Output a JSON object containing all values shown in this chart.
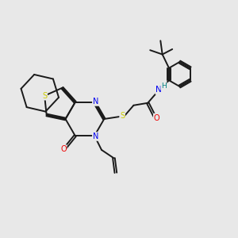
{
  "bg_color": "#e8e8e8",
  "bond_color": "#1a1a1a",
  "S_color": "#cccc00",
  "N_color": "#0000ee",
  "O_color": "#ee0000",
  "H_color": "#008080",
  "lw": 1.4,
  "dbo": 0.045,
  "xlim": [
    0,
    10
  ],
  "ylim": [
    0,
    10
  ]
}
